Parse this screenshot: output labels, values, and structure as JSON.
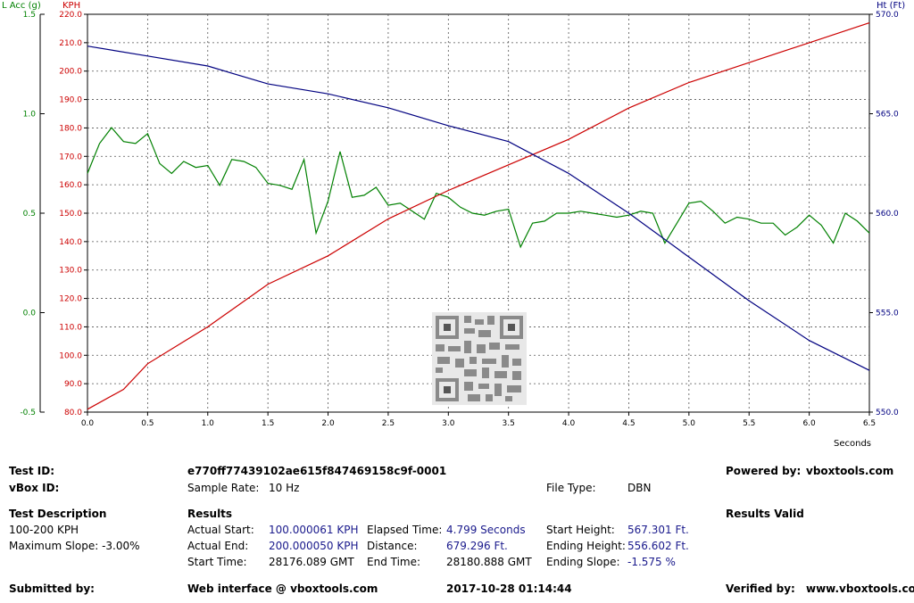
{
  "colors": {
    "kph": "#cc0000",
    "acc": "#008000",
    "ht": "#000080",
    "text_blue": "#1a1a8c"
  },
  "chart_data": {
    "type": "line",
    "x_label": "Seconds",
    "x_range": [
      0.0,
      6.5
    ],
    "x_ticks": [
      "0.0",
      "0.5",
      "1.0",
      "1.5",
      "2.0",
      "2.5",
      "3.0",
      "3.5",
      "4.0",
      "4.5",
      "5.0",
      "5.5",
      "6.0",
      "6.5"
    ],
    "grid": true,
    "axes": {
      "kph": {
        "label": "KPH",
        "range": [
          80,
          220
        ],
        "ticks": [
          "80.0",
          "90.0",
          "100.0",
          "110.0",
          "120.0",
          "130.0",
          "140.0",
          "150.0",
          "160.0",
          "170.0",
          "180.0",
          "190.0",
          "200.0",
          "210.0",
          "220.0"
        ]
      },
      "acc": {
        "label": "L Acc (g)",
        "range": [
          -0.5,
          1.5
        ],
        "ticks": [
          "-0.5",
          "0.0",
          "0.5",
          "1.0",
          "1.5"
        ]
      },
      "ht": {
        "label": "Ht (Ft)",
        "range": [
          550,
          570
        ],
        "ticks": [
          "550.0",
          "555.0",
          "560.0",
          "565.0",
          "570.0"
        ]
      }
    },
    "series": [
      {
        "name": "KPH",
        "axis": "kph",
        "x": [
          0,
          0.3,
          0.5,
          1.0,
          1.5,
          2.0,
          2.5,
          3.0,
          3.5,
          4.0,
          4.5,
          5.0,
          5.5,
          6.0,
          6.5
        ],
        "y": [
          81,
          88,
          97,
          110,
          125,
          135,
          148,
          158,
          167,
          176,
          187,
          196,
          203,
          210,
          217
        ]
      },
      {
        "name": "Ht",
        "axis": "ht",
        "x": [
          0,
          0.5,
          1.0,
          1.5,
          2.0,
          2.5,
          3.0,
          3.5,
          4.0,
          4.5,
          5.0,
          5.5,
          6.0,
          6.5
        ],
        "y": [
          568.4,
          567.9,
          567.4,
          566.5,
          566.0,
          565.3,
          564.4,
          563.6,
          562.0,
          560.0,
          557.8,
          555.6,
          553.6,
          552.1
        ]
      },
      {
        "name": "L Acc",
        "axis": "acc",
        "x": [
          0,
          0.1,
          0.2,
          0.3,
          0.4,
          0.5,
          0.6,
          0.7,
          0.8,
          0.9,
          1.0,
          1.1,
          1.2,
          1.3,
          1.4,
          1.5,
          1.6,
          1.7,
          1.8,
          1.9,
          2.0,
          2.1,
          2.2,
          2.3,
          2.4,
          2.5,
          2.6,
          2.7,
          2.8,
          2.9,
          3.0,
          3.1,
          3.2,
          3.3,
          3.4,
          3.5,
          3.6,
          3.7,
          3.8,
          3.9,
          4.0,
          4.1,
          4.2,
          4.3,
          4.4,
          4.5,
          4.6,
          4.7,
          4.8,
          4.9,
          5.0,
          5.1,
          5.2,
          5.3,
          5.4,
          5.5,
          5.6,
          5.7,
          5.8,
          5.9,
          6.0,
          6.1,
          6.2,
          6.3,
          6.4,
          6.5
        ],
        "y": [
          0.7,
          0.85,
          0.93,
          0.86,
          0.85,
          0.9,
          0.75,
          0.7,
          0.76,
          0.73,
          0.74,
          0.64,
          0.77,
          0.76,
          0.73,
          0.65,
          0.64,
          0.62,
          0.77,
          0.4,
          0.56,
          0.81,
          0.58,
          0.59,
          0.63,
          0.54,
          0.55,
          0.51,
          0.47,
          0.6,
          0.58,
          0.53,
          0.5,
          0.49,
          0.51,
          0.52,
          0.33,
          0.45,
          0.46,
          0.5,
          0.5,
          0.51,
          0.5,
          0.49,
          0.48,
          0.49,
          0.51,
          0.5,
          0.35,
          0.45,
          0.55,
          0.56,
          0.51,
          0.45,
          0.48,
          0.47,
          0.45,
          0.45,
          0.39,
          0.43,
          0.49,
          0.44,
          0.35,
          0.5,
          0.46,
          0.4
        ]
      }
    ]
  },
  "info": {
    "test_id_label": "Test ID:",
    "test_id": "e770ff77439102ae615f847469158c9f-0001",
    "powered_label": "Powered by:",
    "powered_value": "vboxtools.com",
    "vbox_id_label": "vBox ID:",
    "sample_rate_label": "Sample Rate:",
    "sample_rate": "10 Hz",
    "file_type_label": "File Type:",
    "file_type": "DBN",
    "test_desc_label": "Test Description",
    "results_label": "Results",
    "results_valid": "Results Valid",
    "desc_line1": "100-200 KPH",
    "desc_line2": "Maximum Slope:  -3.00%",
    "actual_start_label": "Actual Start:",
    "actual_start": "100.000061 KPH",
    "elapsed_label": "Elapsed Time:",
    "elapsed": "4.799 Seconds",
    "start_height_label": "Start Height:",
    "start_height": "567.301 Ft.",
    "actual_end_label": "Actual End:",
    "actual_end": "200.000050 KPH",
    "distance_label": "Distance:",
    "distance": "679.296 Ft.",
    "ending_height_label": "Ending Height:",
    "ending_height": "556.602 Ft.",
    "start_time_label": "Start Time:",
    "start_time": "28176.089 GMT",
    "end_time_label": "End Time:",
    "end_time": "28180.888 GMT",
    "ending_slope_label": "Ending Slope:",
    "ending_slope": "-1.575 %",
    "submitted_label": "Submitted by:",
    "web_interface": "Web interface @ vboxtools.com",
    "datetime": "2017-10-28 01:14:44",
    "verified_label": "Verified by:",
    "verified_value": "www.vboxtools.com"
  },
  "qr": {
    "icon": "qr-code-icon"
  }
}
